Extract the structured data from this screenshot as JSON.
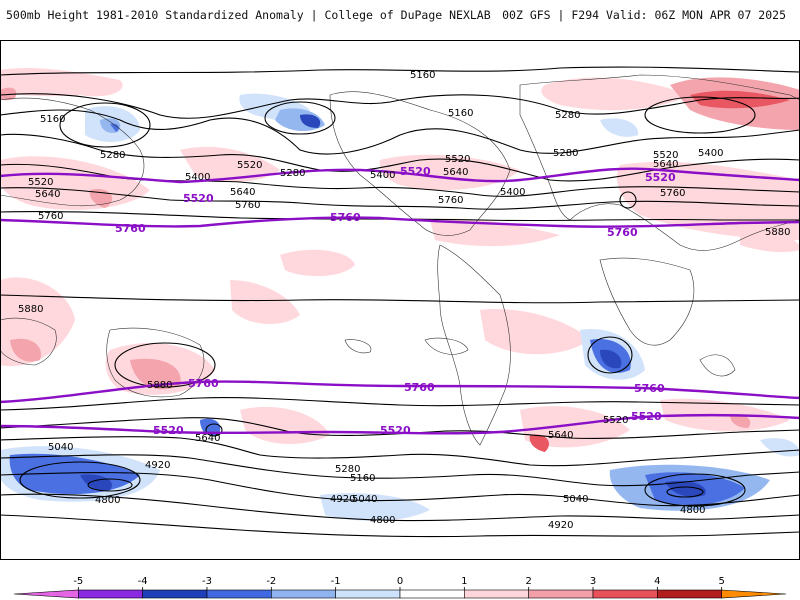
{
  "header": {
    "title_left": "500mb Height 1981-2010 Standardized Anomaly | College of DuPage NEXLAB",
    "title_right": "00Z GFS | F294 Valid: 06Z MON APR 07 2025"
  },
  "map": {
    "contour_labels_black": [
      "5160",
      "5160",
      "5160",
      "5280",
      "5280",
      "5280",
      "5280",
      "5400",
      "5400",
      "5400",
      "5400",
      "5520",
      "5520",
      "5520",
      "5520",
      "5640",
      "5640",
      "5640",
      "5640",
      "5640",
      "5760",
      "5760",
      "5760",
      "5760",
      "5880",
      "5880",
      "5880",
      "5040",
      "5040",
      "5040",
      "4920",
      "4920",
      "4920",
      "4800",
      "4800",
      "4800",
      "5160",
      "5280",
      "5640",
      "5520"
    ],
    "contour_labels_purple": [
      "5520",
      "5520",
      "5520",
      "5760",
      "5760",
      "5760",
      "5760",
      "5760",
      "5760",
      "5520",
      "5520",
      "5520"
    ]
  },
  "colorbar": {
    "ticks": [
      "-5",
      "-4",
      "-3",
      "-2",
      "-1",
      "0",
      "1",
      "2",
      "3",
      "4",
      "5"
    ],
    "colors": [
      "#e466e4",
      "#8a2be2",
      "#1f3fb8",
      "#4169e1",
      "#8fb4f0",
      "#cfe2fb",
      "#ffffff",
      "#ffd6dc",
      "#f4a0a8",
      "#e8505a",
      "#b21e1e",
      "#ff8c00"
    ]
  }
}
